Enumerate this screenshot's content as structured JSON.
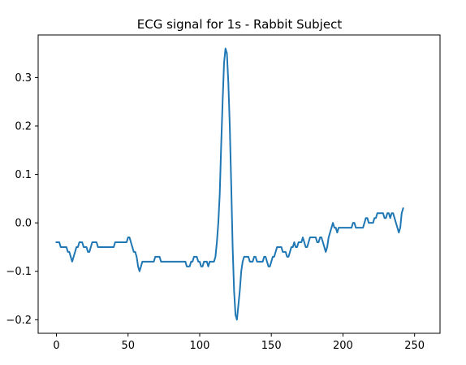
{
  "chart_data": {
    "type": "line",
    "title": "ECG signal for 1s - Rabbit Subject",
    "xlabel": "",
    "ylabel": "",
    "xlim": [
      -12.75,
      267.75
    ],
    "ylim": [
      -0.228,
      0.388
    ],
    "grid": false,
    "x_ticks": [
      0,
      50,
      100,
      150,
      200,
      250
    ],
    "y_ticks": [
      -0.2,
      -0.1,
      0.0,
      0.1,
      0.2,
      0.3
    ],
    "y_tick_labels": [
      "−0.2",
      "−0.1",
      "0.0",
      "0.1",
      "0.2",
      "0.3"
    ],
    "line_color": "#1f77b4",
    "series": [
      {
        "x_start": 0,
        "x_step": 1,
        "values": [
          -0.04,
          -0.04,
          -0.04,
          -0.05,
          -0.05,
          -0.05,
          -0.05,
          -0.05,
          -0.06,
          -0.06,
          -0.07,
          -0.08,
          -0.07,
          -0.06,
          -0.05,
          -0.05,
          -0.04,
          -0.04,
          -0.04,
          -0.05,
          -0.05,
          -0.05,
          -0.06,
          -0.06,
          -0.05,
          -0.04,
          -0.04,
          -0.04,
          -0.04,
          -0.05,
          -0.05,
          -0.05,
          -0.05,
          -0.05,
          -0.05,
          -0.05,
          -0.05,
          -0.05,
          -0.05,
          -0.05,
          -0.05,
          -0.04,
          -0.04,
          -0.04,
          -0.04,
          -0.04,
          -0.04,
          -0.04,
          -0.04,
          -0.04,
          -0.03,
          -0.03,
          -0.04,
          -0.05,
          -0.06,
          -0.06,
          -0.07,
          -0.09,
          -0.1,
          -0.09,
          -0.08,
          -0.08,
          -0.08,
          -0.08,
          -0.08,
          -0.08,
          -0.08,
          -0.08,
          -0.08,
          -0.07,
          -0.07,
          -0.07,
          -0.07,
          -0.08,
          -0.08,
          -0.08,
          -0.08,
          -0.08,
          -0.08,
          -0.08,
          -0.08,
          -0.08,
          -0.08,
          -0.08,
          -0.08,
          -0.08,
          -0.08,
          -0.08,
          -0.08,
          -0.08,
          -0.08,
          -0.09,
          -0.09,
          -0.09,
          -0.08,
          -0.08,
          -0.07,
          -0.07,
          -0.07,
          -0.08,
          -0.08,
          -0.09,
          -0.09,
          -0.08,
          -0.08,
          -0.08,
          -0.09,
          -0.08,
          -0.08,
          -0.08,
          -0.08,
          -0.07,
          -0.04,
          0.0,
          0.06,
          0.16,
          0.25,
          0.33,
          0.36,
          0.35,
          0.29,
          0.2,
          0.08,
          -0.05,
          -0.14,
          -0.19,
          -0.2,
          -0.17,
          -0.14,
          -0.1,
          -0.08,
          -0.07,
          -0.07,
          -0.07,
          -0.07,
          -0.08,
          -0.08,
          -0.08,
          -0.07,
          -0.07,
          -0.08,
          -0.08,
          -0.08,
          -0.08,
          -0.08,
          -0.07,
          -0.07,
          -0.08,
          -0.09,
          -0.09,
          -0.08,
          -0.07,
          -0.07,
          -0.06,
          -0.05,
          -0.05,
          -0.05,
          -0.05,
          -0.06,
          -0.06,
          -0.06,
          -0.07,
          -0.07,
          -0.06,
          -0.05,
          -0.05,
          -0.04,
          -0.05,
          -0.05,
          -0.04,
          -0.04,
          -0.04,
          -0.03,
          -0.04,
          -0.05,
          -0.05,
          -0.04,
          -0.03,
          -0.03,
          -0.03,
          -0.03,
          -0.03,
          -0.04,
          -0.04,
          -0.03,
          -0.03,
          -0.04,
          -0.05,
          -0.06,
          -0.05,
          -0.03,
          -0.02,
          -0.01,
          0.0,
          -0.01,
          -0.01,
          -0.02,
          -0.01,
          -0.01,
          -0.01,
          -0.01,
          -0.01,
          -0.01,
          -0.01,
          -0.01,
          -0.01,
          -0.01,
          0.0,
          0.0,
          -0.01,
          -0.01,
          -0.01,
          -0.01,
          -0.01,
          -0.01,
          0.0,
          0.01,
          0.01,
          0.0,
          0.0,
          0.0,
          0.0,
          0.01,
          0.01,
          0.02,
          0.02,
          0.02,
          0.02,
          0.02,
          0.01,
          0.01,
          0.02,
          0.02,
          0.01,
          0.02,
          0.02,
          0.01,
          0.0,
          -0.01,
          -0.02,
          -0.01,
          0.02,
          0.03
        ]
      }
    ]
  }
}
